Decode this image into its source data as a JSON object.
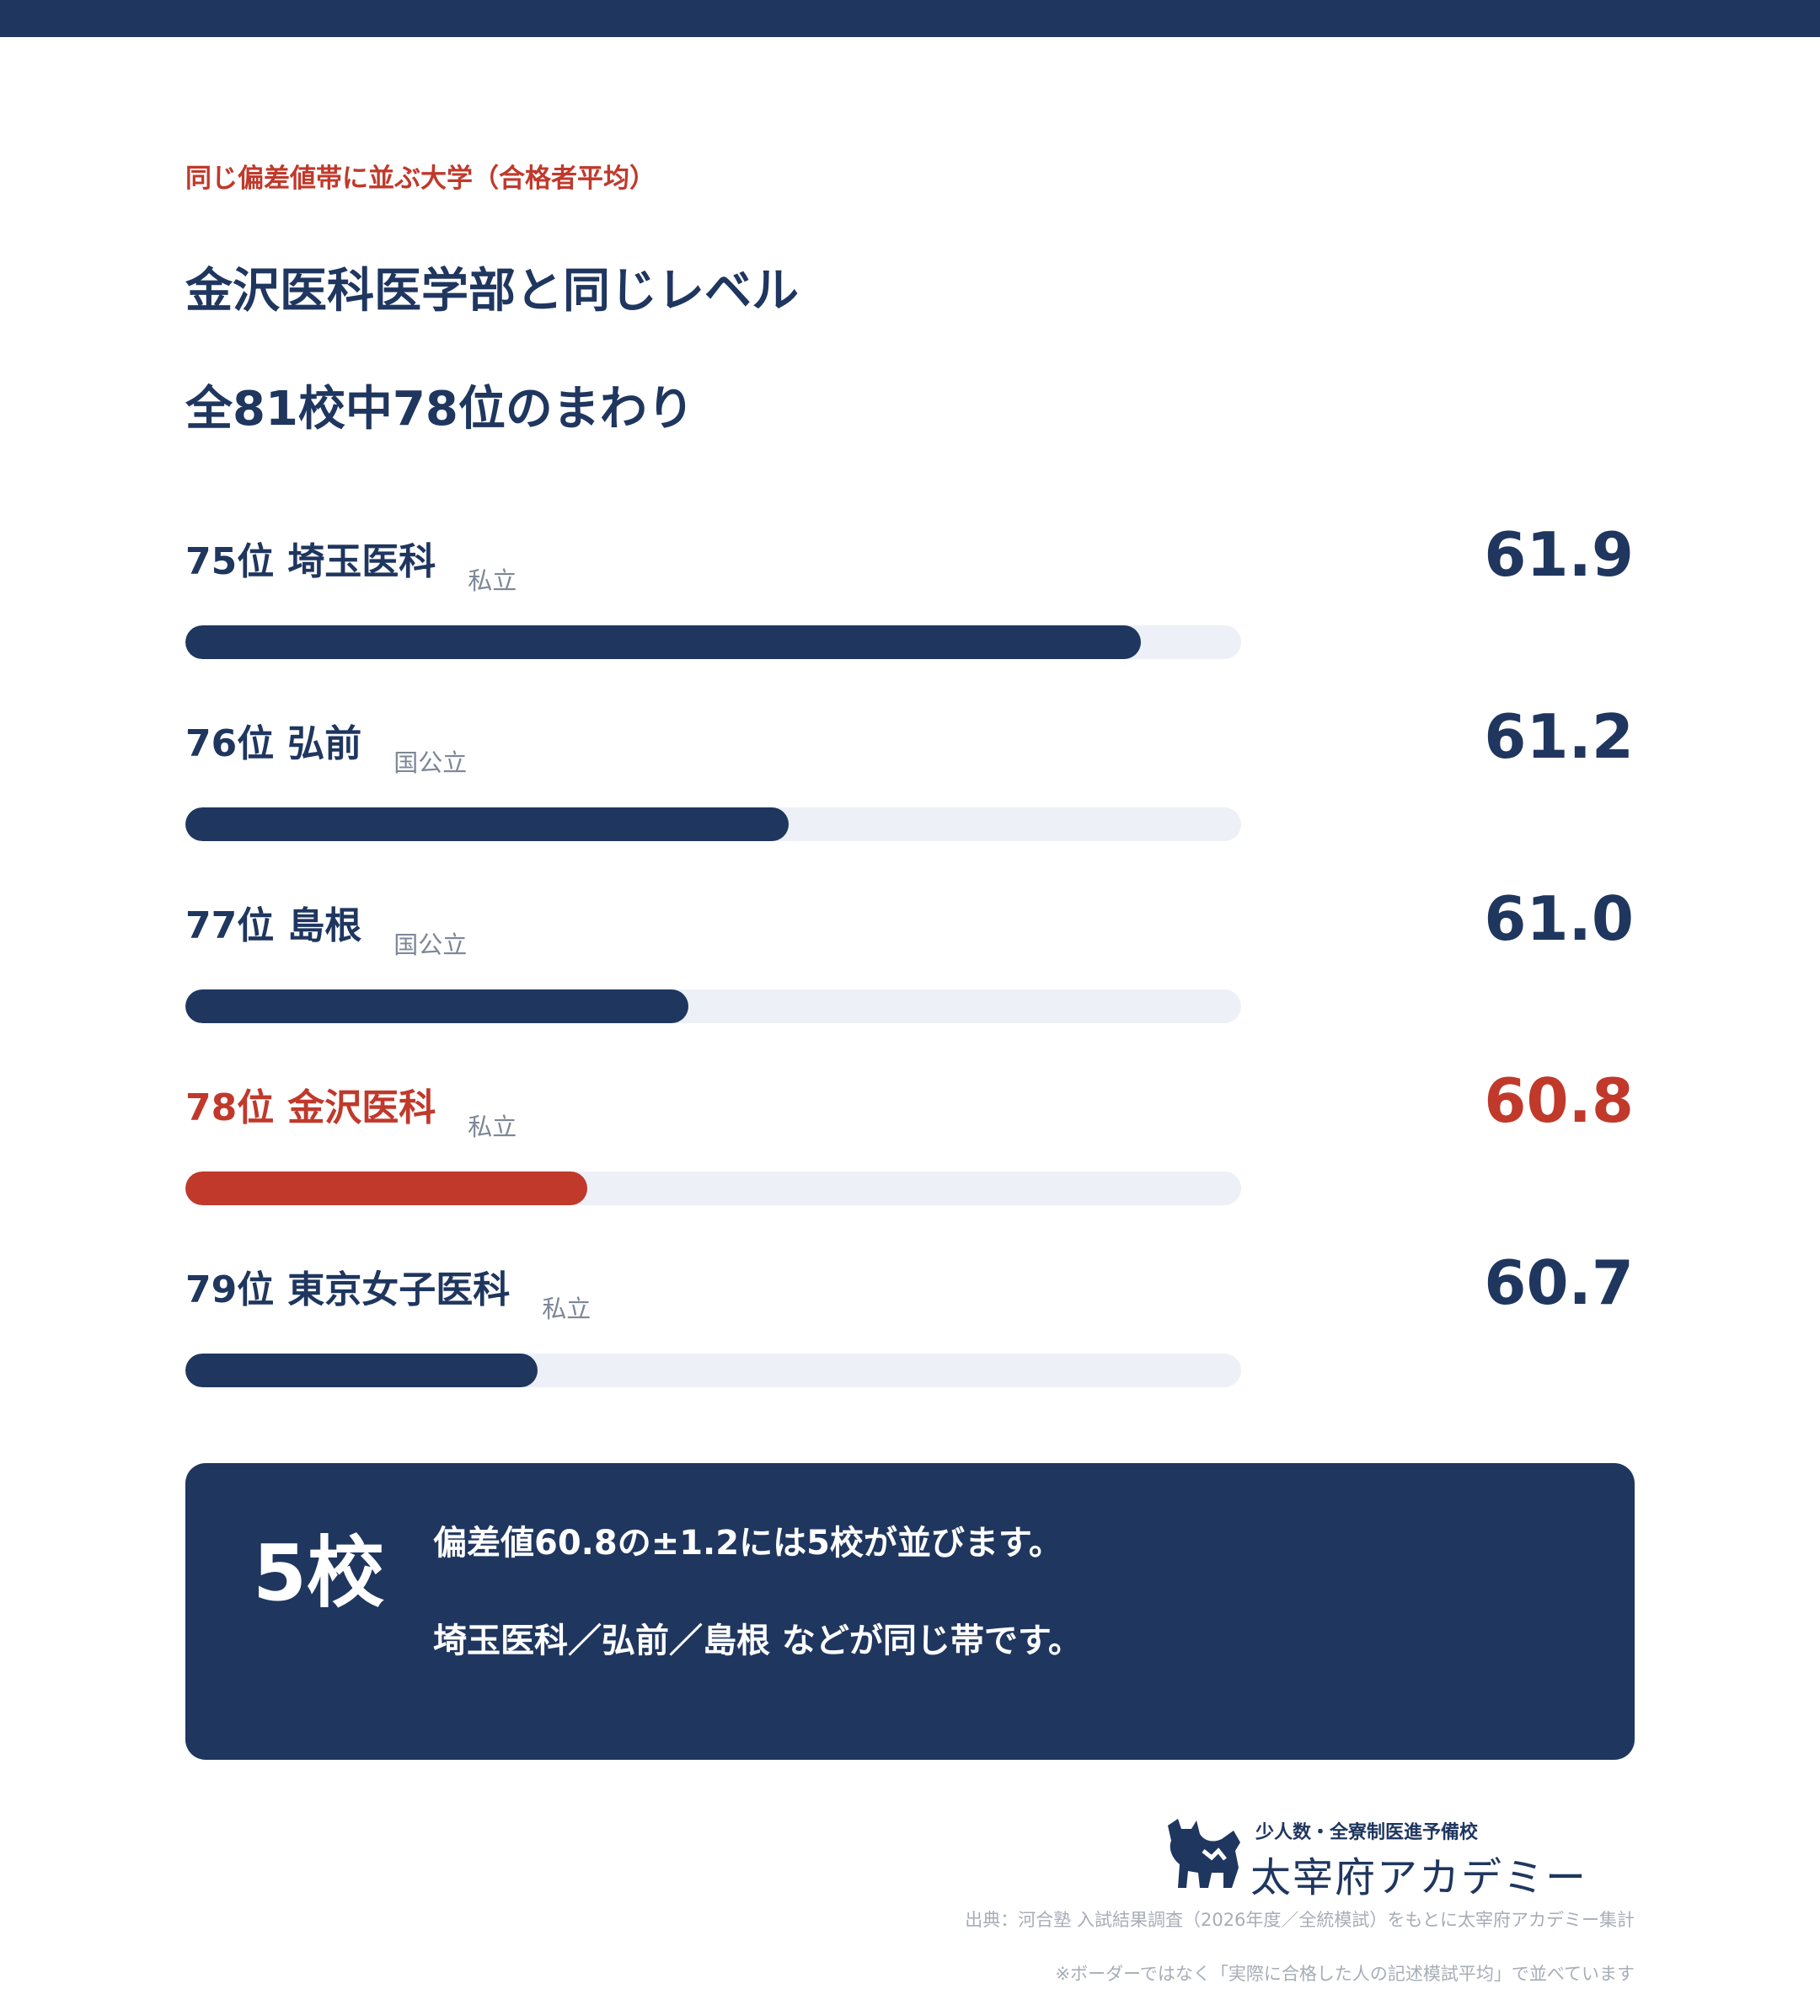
{
  "header": {
    "eyebrow": "同じ偏差値帯に並ぶ大学（合格者平均）",
    "title_line1": "金沢医科医学部と同じレベル",
    "title_line2": "全81校中78位のまわり"
  },
  "chart_data": {
    "type": "bar",
    "orientation": "horizontal",
    "metric": "偏差値",
    "scale_min": 60.0,
    "scale_max": 62.1,
    "colors": {
      "default": "#1f365f",
      "highlight": "#c0392b",
      "track": "#edf0f7"
    },
    "rows": [
      {
        "rank": "75位",
        "name": "埼玉医科",
        "type": "私立",
        "value": 61.9,
        "value_label": "61.9",
        "highlight": false
      },
      {
        "rank": "76位",
        "name": "弘前",
        "type": "国公立",
        "value": 61.2,
        "value_label": "61.2",
        "highlight": false
      },
      {
        "rank": "77位",
        "name": "島根",
        "type": "国公立",
        "value": 61.0,
        "value_label": "61.0",
        "highlight": false
      },
      {
        "rank": "78位",
        "name": "金沢医科",
        "type": "私立",
        "value": 60.8,
        "value_label": "60.8",
        "highlight": true
      },
      {
        "rank": "79位",
        "name": "東京女子医科",
        "type": "私立",
        "value": 60.7,
        "value_label": "60.7",
        "highlight": false
      }
    ]
  },
  "summary": {
    "count": "5校",
    "line1": "偏差値60.8の±1.2には5校が並びます。",
    "line2": "埼玉医科／弘前／島根 などが同じ帯です。"
  },
  "logo": {
    "tagline": "少人数・全寮制医進予備校",
    "brand": "太宰府アカデミー"
  },
  "footer": {
    "source": "出典：河合塾 入試結果調査（2026年度／全統模試）をもとに太宰府アカデミー集計",
    "note": "※ボーダーではなく「実際に合格した人の記述模試平均」で並べています"
  }
}
